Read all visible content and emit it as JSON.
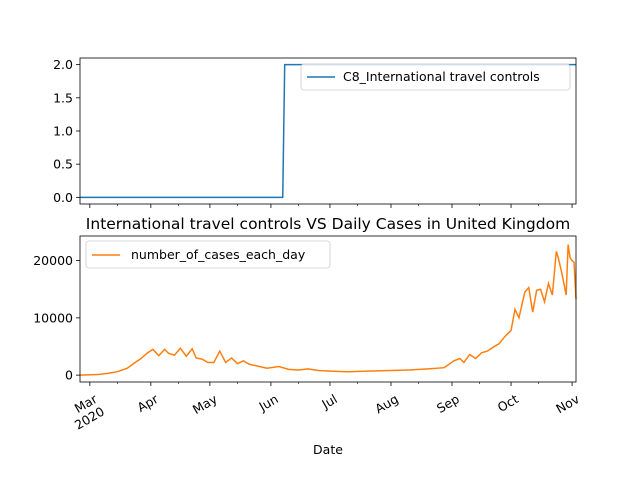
{
  "chart_data": [
    {
      "type": "line",
      "title": "",
      "xlabel": "",
      "ylabel": "",
      "ylim": [
        -0.1,
        2.1
      ],
      "yticks": [
        0.0,
        0.5,
        1.0,
        1.5,
        2.0
      ],
      "ytick_labels": [
        "0.0",
        "0.5",
        "1.0",
        "1.5",
        "2.0"
      ],
      "legend": {
        "position": "upper right"
      },
      "series": [
        {
          "name": "C8_International travel controls",
          "color": "#1f77b4",
          "x": [
            "2020-02-25",
            "2020-06-07",
            "2020-06-08",
            "2020-11-03"
          ],
          "values": [
            0,
            0,
            2,
            2
          ]
        }
      ]
    },
    {
      "type": "line",
      "title": "International travel controls VS Daily Cases in United Kingdom",
      "xlabel": "Date",
      "ylabel": "",
      "ylim": [
        -1200,
        24300
      ],
      "yticks": [
        0,
        10000,
        20000
      ],
      "ytick_labels": [
        "0",
        "10000",
        "20000"
      ],
      "xticks": [
        "2020-03-01",
        "2020-04-01",
        "2020-05-01",
        "2020-06-01",
        "2020-07-01",
        "2020-08-01",
        "2020-09-01",
        "2020-10-01",
        "2020-11-01"
      ],
      "xtick_labels": [
        "Mar\n2020",
        "Apr",
        "May",
        "Jun",
        "Jul",
        "Aug",
        "Sep",
        "Oct",
        "Nov"
      ],
      "legend": {
        "position": "upper left"
      },
      "series": [
        {
          "name": "number_of_cases_each_day",
          "color": "#ff7f0e",
          "x": [
            "2020-02-25",
            "2020-03-05",
            "2020-03-10",
            "2020-03-15",
            "2020-03-20",
            "2020-03-24",
            "2020-03-27",
            "2020-03-30",
            "2020-04-02",
            "2020-04-05",
            "2020-04-08",
            "2020-04-10",
            "2020-04-13",
            "2020-04-16",
            "2020-04-19",
            "2020-04-22",
            "2020-04-24",
            "2020-04-27",
            "2020-04-30",
            "2020-05-03",
            "2020-05-06",
            "2020-05-09",
            "2020-05-12",
            "2020-05-15",
            "2020-05-18",
            "2020-05-21",
            "2020-05-25",
            "2020-05-30",
            "2020-06-05",
            "2020-06-10",
            "2020-06-15",
            "2020-06-20",
            "2020-06-25",
            "2020-07-01",
            "2020-07-10",
            "2020-07-20",
            "2020-08-01",
            "2020-08-10",
            "2020-08-20",
            "2020-08-28",
            "2020-09-02",
            "2020-09-05",
            "2020-09-07",
            "2020-09-10",
            "2020-09-13",
            "2020-09-16",
            "2020-09-19",
            "2020-09-22",
            "2020-09-25",
            "2020-09-28",
            "2020-10-01",
            "2020-10-03",
            "2020-10-05",
            "2020-10-08",
            "2020-10-10",
            "2020-10-12",
            "2020-10-14",
            "2020-10-16",
            "2020-10-18",
            "2020-10-20",
            "2020-10-22",
            "2020-10-24",
            "2020-10-25",
            "2020-10-27",
            "2020-10-29",
            "2020-10-30",
            "2020-10-31",
            "2020-11-01",
            "2020-11-02",
            "2020-11-03"
          ],
          "values": [
            0,
            100,
            300,
            600,
            1200,
            2200,
            2900,
            3800,
            4500,
            3400,
            4500,
            3800,
            3500,
            4700,
            3300,
            4600,
            3000,
            2800,
            2200,
            2200,
            4200,
            2200,
            3000,
            2000,
            2500,
            1900,
            1600,
            1200,
            1500,
            1000,
            900,
            1100,
            800,
            700,
            600,
            700,
            800,
            900,
            1100,
            1300,
            2500,
            2900,
            2200,
            3600,
            2900,
            3900,
            4200,
            4900,
            5500,
            6800,
            7800,
            11500,
            10000,
            14500,
            15300,
            11000,
            14800,
            15000,
            12800,
            16000,
            14000,
            21600,
            20500,
            17500,
            14000,
            22800,
            20500,
            20000,
            19700,
            13300
          ]
        }
      ]
    }
  ]
}
